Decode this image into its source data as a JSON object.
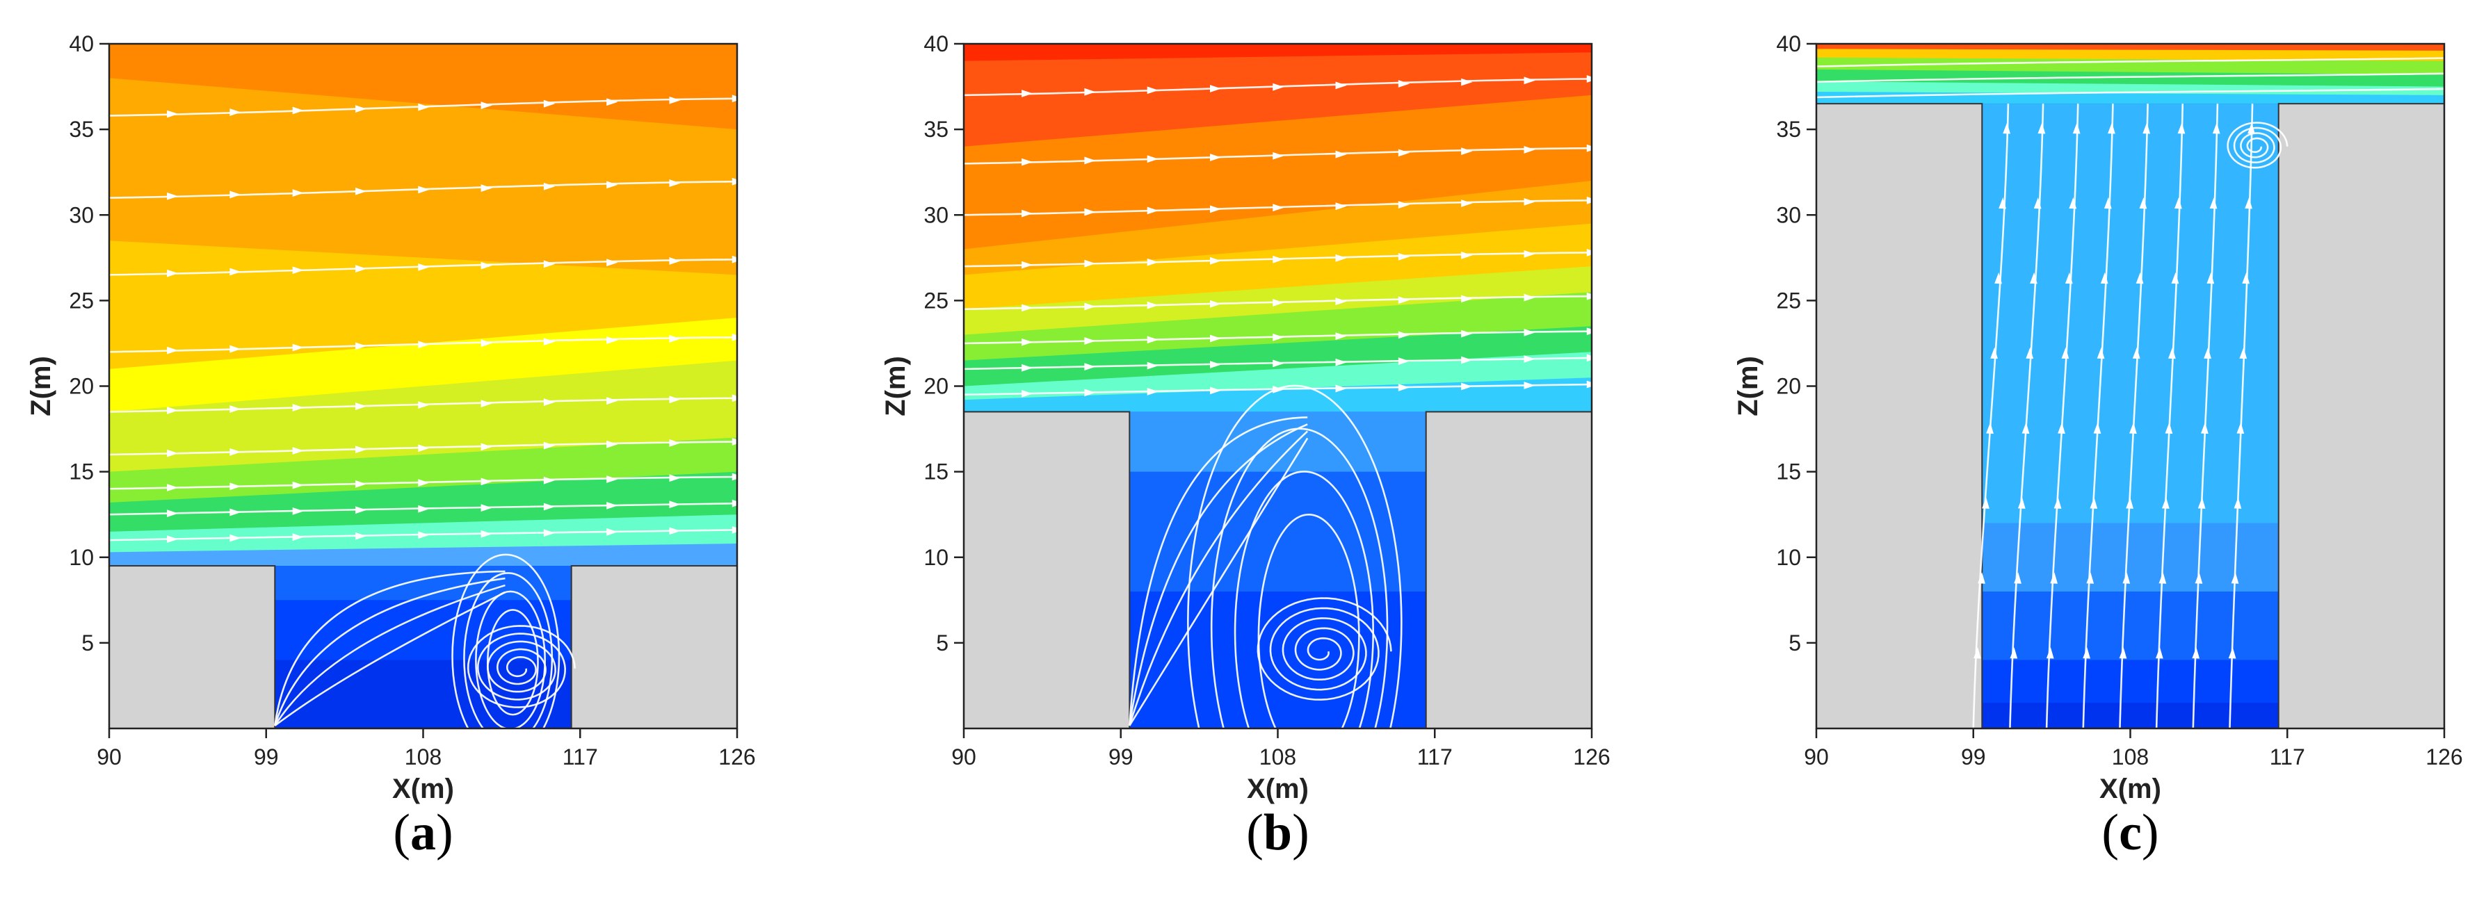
{
  "figure": {
    "panels": [
      {
        "label": "a",
        "caption_open": "(",
        "caption_close": ")"
      },
      {
        "label": "b",
        "caption_open": "(",
        "caption_close": ")"
      },
      {
        "label": "c",
        "caption_open": "(",
        "caption_close": ")"
      }
    ]
  },
  "chart_data": [
    {
      "type": "heatmap",
      "panel": "a",
      "xlabel": "X(m)",
      "ylabel": "Z(m)",
      "xlim": [
        90,
        126
      ],
      "ylim": [
        0,
        40
      ],
      "xticks": [
        90,
        99,
        108,
        117,
        126
      ],
      "yticks": [
        5,
        10,
        15,
        20,
        25,
        30,
        35,
        40
      ],
      "buildings": [
        {
          "x": [
            90,
            99.5
          ],
          "z": [
            0,
            9.5
          ]
        },
        {
          "x": [
            116.5,
            126
          ],
          "z": [
            0,
            9.5
          ]
        }
      ],
      "color_bands": [
        {
          "z_left": 9.5,
          "z_right": 9.5,
          "color": "#4da6ff"
        },
        {
          "z_left": 10.3,
          "z_right": 10.8,
          "color": "#66ffcc"
        },
        {
          "z_left": 11.5,
          "z_right": 12.5,
          "color": "#33dd66"
        },
        {
          "z_left": 13.2,
          "z_right": 15.0,
          "color": "#88ee33"
        },
        {
          "z_left": 15.0,
          "z_right": 17.0,
          "color": "#d4f022"
        },
        {
          "z_left": 18.5,
          "z_right": 21.5,
          "color": "#ffff00"
        },
        {
          "z_left": 21.0,
          "z_right": 24.0,
          "color": "#ffcc00"
        },
        {
          "z_left": 28.5,
          "z_right": 26.5,
          "color": "#ffaa00"
        },
        {
          "z_left": 38.0,
          "z_right": 35.0,
          "color": "#ff8800"
        },
        {
          "z_left": 40.0,
          "z_right": 40.0,
          "color": "#ff5511"
        }
      ],
      "canyon_bands": [
        {
          "z": 0.0,
          "color": "#0033ee"
        },
        {
          "z": 4.0,
          "color": "#0044ff"
        },
        {
          "z": 7.5,
          "color": "#1166ff"
        }
      ],
      "vortex": {
        "x": 113.5,
        "z": 3.5,
        "turns": 5,
        "r0": 0.4,
        "r1": 3.2
      },
      "streamlines_z": [
        11,
        12.5,
        14,
        16,
        18.5,
        22,
        26.5,
        31,
        35.8
      ]
    },
    {
      "type": "heatmap",
      "panel": "b",
      "xlabel": "X(m)",
      "ylabel": "Z(m)",
      "xlim": [
        90,
        126
      ],
      "ylim": [
        0,
        40
      ],
      "xticks": [
        90,
        99,
        108,
        117,
        126
      ],
      "yticks": [
        5,
        10,
        15,
        20,
        25,
        30,
        35,
        40
      ],
      "buildings": [
        {
          "x": [
            90,
            99.5
          ],
          "z": [
            0,
            18.5
          ]
        },
        {
          "x": [
            116.5,
            126
          ],
          "z": [
            0,
            18.5
          ]
        }
      ],
      "color_bands": [
        {
          "z_left": 18.5,
          "z_right": 18.5,
          "color": "#33ccff"
        },
        {
          "z_left": 19.2,
          "z_right": 20.5,
          "color": "#66ffcc"
        },
        {
          "z_left": 20.0,
          "z_right": 22.0,
          "color": "#33dd66"
        },
        {
          "z_left": 21.5,
          "z_right": 23.5,
          "color": "#88ee33"
        },
        {
          "z_left": 23.0,
          "z_right": 25.5,
          "color": "#d4f022"
        },
        {
          "z_left": 24.5,
          "z_right": 27.0,
          "color": "#ffcc00"
        },
        {
          "z_left": 26.5,
          "z_right": 29.5,
          "color": "#ffaa00"
        },
        {
          "z_left": 28.0,
          "z_right": 32.0,
          "color": "#ff8800"
        },
        {
          "z_left": 34.0,
          "z_right": 37.0,
          "color": "#ff5511"
        },
        {
          "z_left": 39.0,
          "z_right": 39.5,
          "color": "#ff2a00"
        }
      ],
      "canyon_bands": [
        {
          "z": 0.0,
          "color": "#0044ff"
        },
        {
          "z": 8.0,
          "color": "#1166ff"
        },
        {
          "z": 15.0,
          "color": "#3399ff"
        }
      ],
      "vortex": {
        "x": 110.5,
        "z": 4.5,
        "turns": 5,
        "r0": 0.4,
        "r1": 4.0
      },
      "streamlines_z": [
        19.5,
        21,
        22.5,
        24.5,
        27,
        30,
        33,
        37
      ]
    },
    {
      "type": "heatmap",
      "panel": "c",
      "xlabel": "X(m)",
      "ylabel": "Z(m)",
      "xlim": [
        90,
        126
      ],
      "ylim": [
        0,
        40
      ],
      "xticks": [
        90,
        99,
        108,
        117,
        126
      ],
      "yticks": [
        5,
        10,
        15,
        20,
        25,
        30,
        35,
        40
      ],
      "buildings": [
        {
          "x": [
            90,
            99.5
          ],
          "z": [
            0,
            36.5
          ]
        },
        {
          "x": [
            116.5,
            126
          ],
          "z": [
            0,
            36.5
          ]
        }
      ],
      "color_bands": [
        {
          "z_left": 36.5,
          "z_right": 36.5,
          "color": "#33ccff"
        },
        {
          "z_left": 37.2,
          "z_right": 37.0,
          "color": "#66ffcc"
        },
        {
          "z_left": 37.8,
          "z_right": 37.5,
          "color": "#33dd66"
        },
        {
          "z_left": 38.5,
          "z_right": 38.2,
          "color": "#88ee33"
        },
        {
          "z_left": 39.2,
          "z_right": 39.0,
          "color": "#ffcc00"
        },
        {
          "z_left": 39.7,
          "z_right": 39.6,
          "color": "#ff5511"
        }
      ],
      "canyon_bands": [
        {
          "z": 0.0,
          "color": "#0033ee"
        },
        {
          "z": 1.5,
          "color": "#0044ff"
        },
        {
          "z": 4.0,
          "color": "#1166ff"
        },
        {
          "z": 8.0,
          "color": "#3399ff"
        },
        {
          "z": 12.0,
          "color": "#33b5ff"
        }
      ],
      "vortex": {
        "x": 115.2,
        "z": 34.0,
        "turns": 4,
        "r0": 0.3,
        "r1": 1.8
      },
      "streamlines_x": [
        100.5,
        102.5,
        104.5,
        106.5,
        108.5,
        110.5,
        112.5,
        114.5
      ]
    }
  ]
}
